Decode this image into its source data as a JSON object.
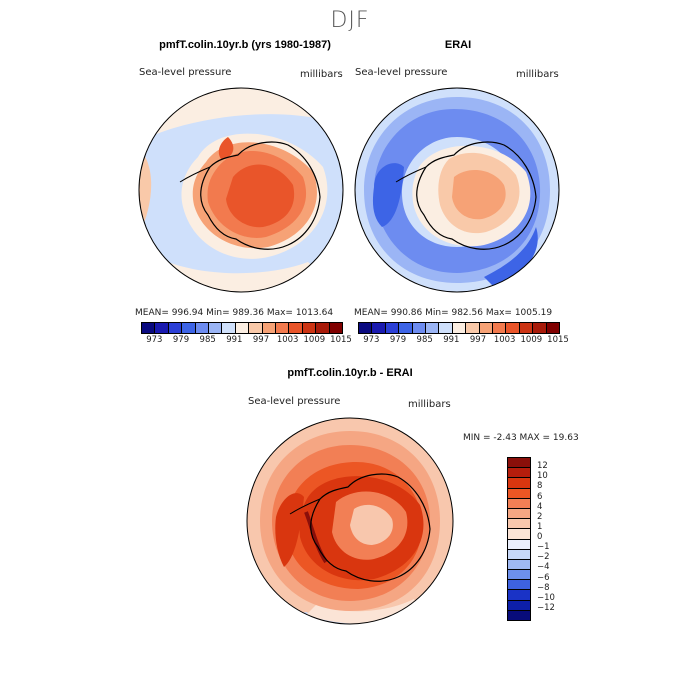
{
  "figure": {
    "suptitle": "DJF"
  },
  "panel_model": {
    "title": "pmfT.colin.10yr.b (yrs 1980-1987)",
    "left_label": "Sea-level pressure",
    "right_label": "millibars",
    "stats": "MEAN=  996.94   Min=  989.36   Max=  1013.64"
  },
  "panel_obs": {
    "title": "ERAI",
    "left_label": "Sea-level pressure",
    "right_label": "millibars",
    "stats": "MEAN=  990.86   Min=  982.56   Max=  1005.19"
  },
  "panel_diff": {
    "title": "pmfT.colin.10yr.b - ERAI",
    "left_label": "Sea-level pressure",
    "right_label": "millibars",
    "stats": "MIN =   -2.43  MAX =   19.63"
  },
  "colorbar_abs": {
    "ticks": [
      "973",
      "979",
      "985",
      "991",
      "997",
      "1003",
      "1009",
      "1015"
    ],
    "colors": [
      "#0a0a80",
      "#1a1ab0",
      "#2b3fd6",
      "#3d64e6",
      "#6d8cf0",
      "#9bb5f5",
      "#cfe0fb",
      "#fbeee2",
      "#f9c9a9",
      "#f6a276",
      "#f27a4e",
      "#e9552a",
      "#cc3414",
      "#a81b0a",
      "#800000"
    ]
  },
  "colorbar_diff": {
    "ticks": [
      "12",
      "10",
      "8",
      "6",
      "4",
      "2",
      "1",
      "0",
      "−1",
      "−2",
      "−4",
      "−6",
      "−8",
      "−10",
      "−12"
    ],
    "colors": [
      "#8a0f0a",
      "#b51d0c",
      "#d9360f",
      "#ec5624",
      "#f27f55",
      "#f5a683",
      "#f8c7ad",
      "#fbe4d6",
      "#eaeffc",
      "#c7d8f8",
      "#9fb9f3",
      "#6d90ec",
      "#3e62e0",
      "#1a33c6",
      "#0d1fa8",
      "#080c7a"
    ]
  }
}
